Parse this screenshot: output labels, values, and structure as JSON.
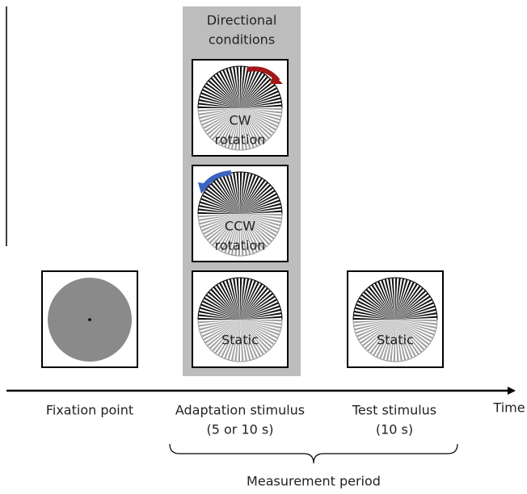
{
  "header": {
    "title_lines": [
      "Directional",
      "conditions"
    ]
  },
  "stimuli": [
    {
      "label_lines": [
        "CW",
        "rotation"
      ]
    },
    {
      "label_lines": [
        "CCW",
        "rotation"
      ]
    },
    {
      "label_lines": [
        "Static"
      ]
    },
    {
      "label_lines": [
        "Static"
      ]
    }
  ],
  "timeline": {
    "axis_label": "Time",
    "stages": [
      {
        "lines": [
          "Fixation point"
        ]
      },
      {
        "lines": [
          "Adaptation stimulus",
          "(5 or 10 s)"
        ]
      },
      {
        "lines": [
          "Test stimulus",
          "(10 s)"
        ]
      }
    ],
    "bracket_label": "Measurement period"
  }
}
